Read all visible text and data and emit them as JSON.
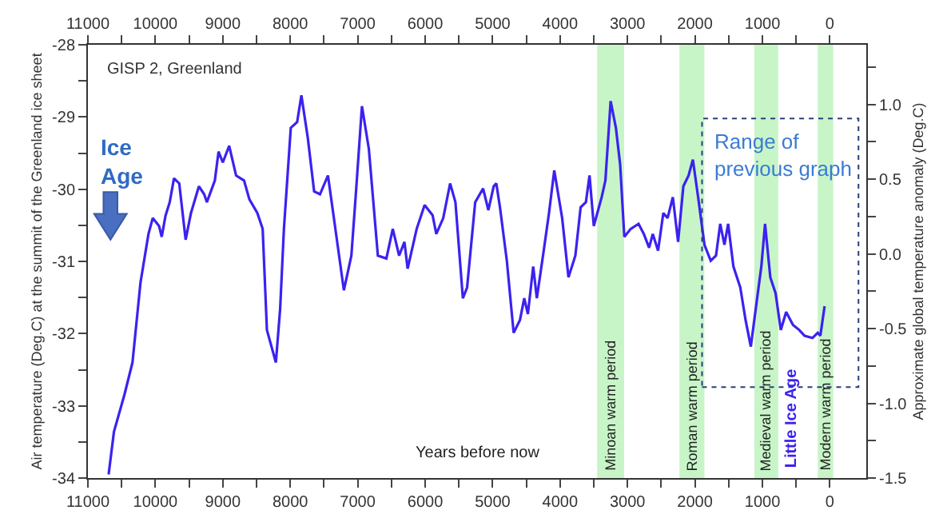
{
  "chart_data": {
    "type": "line",
    "xlabel": "Years before now",
    "ylabel": "Air temperature (Deg.C) at the summit of the Greenland ice sheet",
    "y2label": "Approximate global temperature anomaly (Deg.C)",
    "annotations": [
      "GISP 2, Greenland",
      "Ice Age",
      "Little Ice Age",
      "Range of previous graph"
    ],
    "x": [
      10693,
      10614,
      10457,
      10339,
      10220,
      10102,
      10039,
      9945,
      9906,
      9850,
      9787,
      9724,
      9646,
      9551,
      9472,
      9354,
      9276,
      9236,
      9118,
      9063,
      9000,
      8906,
      8803,
      8685,
      8606,
      8488,
      8409,
      8346,
      8213,
      8150,
      8094,
      7992,
      7898,
      7835,
      7740,
      7646,
      7559,
      7441,
      7331,
      7205,
      7094,
      7031,
      6937,
      6835,
      6701,
      6575,
      6480,
      6386,
      6307,
      6260,
      6126,
      6008,
      5890,
      5835,
      5732,
      5630,
      5551,
      5441,
      5378,
      5258,
      5141,
      5063,
      4984,
      4945,
      4891,
      4789,
      4688,
      4594,
      4531,
      4477,
      4398,
      4344,
      4242,
      4164,
      4086,
      3969,
      3875,
      3773,
      3695,
      3617,
      3563,
      3500,
      3383,
      3328,
      3250,
      3172,
      3109,
      3047,
      2953,
      2836,
      2758,
      2680,
      2625,
      2547,
      2469,
      2406,
      2328,
      2250,
      2172,
      2094,
      2031,
      1953,
      1859,
      1766,
      1688,
      1625,
      1563,
      1508,
      1430,
      1328,
      1250,
      1172,
      1078,
      1016,
      961,
      883,
      805,
      727,
      648,
      547,
      453,
      375,
      258,
      180,
      141,
      78
    ],
    "series": [
      {
        "color": "#3b22f0",
        "values": [
          -33.95,
          -33.36,
          -32.84,
          -32.4,
          -31.29,
          -30.62,
          -30.4,
          -30.51,
          -30.66,
          -30.37,
          -30.18,
          -29.85,
          -29.92,
          -30.7,
          -30.33,
          -29.96,
          -30.07,
          -30.18,
          -29.88,
          -29.48,
          -29.63,
          -29.4,
          -29.81,
          -29.88,
          -30.14,
          -30.33,
          -30.55,
          -31.95,
          -32.4,
          -31.66,
          -30.55,
          -29.15,
          -29.07,
          -28.7,
          -29.29,
          -30.03,
          -30.07,
          -29.81,
          -30.55,
          -31.4,
          -30.92,
          -30.11,
          -28.85,
          -29.44,
          -30.92,
          -30.96,
          -30.55,
          -30.92,
          -30.73,
          -31.1,
          -30.55,
          -30.22,
          -30.36,
          -30.62,
          -30.4,
          -29.92,
          -30.18,
          -31.51,
          -31.36,
          -30.18,
          -29.99,
          -30.29,
          -29.96,
          -29.92,
          -30.25,
          -30.99,
          -31.99,
          -31.81,
          -31.51,
          -31.73,
          -31.07,
          -31.51,
          -30.85,
          -30.33,
          -29.74,
          -30.4,
          -31.22,
          -30.92,
          -30.25,
          -30.18,
          -29.81,
          -30.51,
          -30.11,
          -29.88,
          -28.78,
          -29.15,
          -29.66,
          -30.66,
          -30.55,
          -30.48,
          -30.62,
          -30.81,
          -30.62,
          -30.85,
          -30.33,
          -30.4,
          -30.11,
          -30.73,
          -29.96,
          -29.81,
          -29.59,
          -30.11,
          -30.77,
          -30.99,
          -30.92,
          -30.48,
          -30.77,
          -30.48,
          -31.07,
          -31.36,
          -31.81,
          -32.18,
          -31.51,
          -31.07,
          -30.48,
          -31.22,
          -31.44,
          -31.95,
          -31.7,
          -31.88,
          -31.95,
          -32.03,
          -32.06,
          -31.99,
          -32.03,
          -31.62
        ]
      }
    ],
    "xlim": [
      11000,
      -540
    ],
    "xticks": [
      11000,
      {
        "value": 10500,
        "label": null
      },
      10000,
      {
        "value": 9500,
        "label": null
      },
      9000,
      {
        "value": 8500,
        "label": null
      },
      8000,
      {
        "value": 7500,
        "label": null
      },
      7000,
      {
        "value": 6500,
        "label": null
      },
      6000,
      {
        "value": 5500,
        "label": null
      },
      5000,
      {
        "value": 4500,
        "label": null
      },
      4000,
      {
        "value": 3500,
        "label": null
      },
      3000,
      {
        "value": 2500,
        "label": null
      },
      2000,
      {
        "value": 1500,
        "label": null
      },
      1000,
      {
        "value": 500,
        "label": null
      },
      0
    ],
    "x2lim": [
      11000,
      -540
    ],
    "x2ticks": [
      11000,
      {
        "value": 10500,
        "label": null
      },
      10000,
      {
        "value": 9500,
        "label": null
      },
      9000,
      {
        "value": 8500,
        "label": null
      },
      8000,
      {
        "value": 7500,
        "label": null
      },
      7000,
      {
        "value": 6500,
        "label": null
      },
      6000,
      {
        "value": 5500,
        "label": null
      },
      5000,
      {
        "value": 4500,
        "label": null
      },
      4000,
      {
        "value": 3500,
        "label": null
      },
      3000,
      {
        "value": 2500,
        "label": null
      },
      2000,
      {
        "value": 1500,
        "label": null
      },
      1000,
      {
        "value": 500,
        "label": null
      },
      0
    ],
    "ylim": [
      -34,
      -28
    ],
    "yticks": [
      -34,
      {
        "value": -33.5,
        "label": null
      },
      -33,
      {
        "value": -32.5,
        "label": null
      },
      -32,
      {
        "value": -31.5,
        "label": null
      },
      -31,
      {
        "value": -30.5,
        "label": null
      },
      -30,
      {
        "value": -29.5,
        "label": null
      },
      -29,
      {
        "value": -28.5,
        "label": null
      },
      -28
    ],
    "y2lim": [
      -1.5,
      1.4
    ],
    "y2ticks": [
      -1.5,
      {
        "value": -1.25,
        "label": null
      },
      {
        "value": -1,
        "label": "-1.0"
      },
      {
        "value": -0.75,
        "label": null
      },
      -0.5,
      {
        "value": -0.25,
        "label": null
      },
      {
        "value": 0,
        "label": "0.0"
      },
      {
        "value": 0.25,
        "label": null
      },
      0.5,
      {
        "value": 0.75,
        "label": null
      },
      {
        "value": 1,
        "label": "1.0"
      },
      {
        "value": 1.25,
        "label": null
      }
    ],
    "bands": [
      {
        "axis": "x",
        "from": 3450,
        "to": 3050,
        "label": "Minoan warm period",
        "color": "#c8f5c8"
      },
      {
        "axis": "x",
        "from": 2230,
        "to": 1860,
        "label": "Roman warm period",
        "color": "#c8f5c8"
      },
      {
        "axis": "x",
        "from": 1120,
        "to": 765,
        "label": "Medieval warm period",
        "color": "#c8f5c8"
      },
      {
        "axis": "x",
        "from": 180,
        "to": -50,
        "label": "Modern warm period",
        "color": "#c8f5c8"
      }
    ],
    "grid": false,
    "marker": "none",
    "line_style": "solid"
  }
}
